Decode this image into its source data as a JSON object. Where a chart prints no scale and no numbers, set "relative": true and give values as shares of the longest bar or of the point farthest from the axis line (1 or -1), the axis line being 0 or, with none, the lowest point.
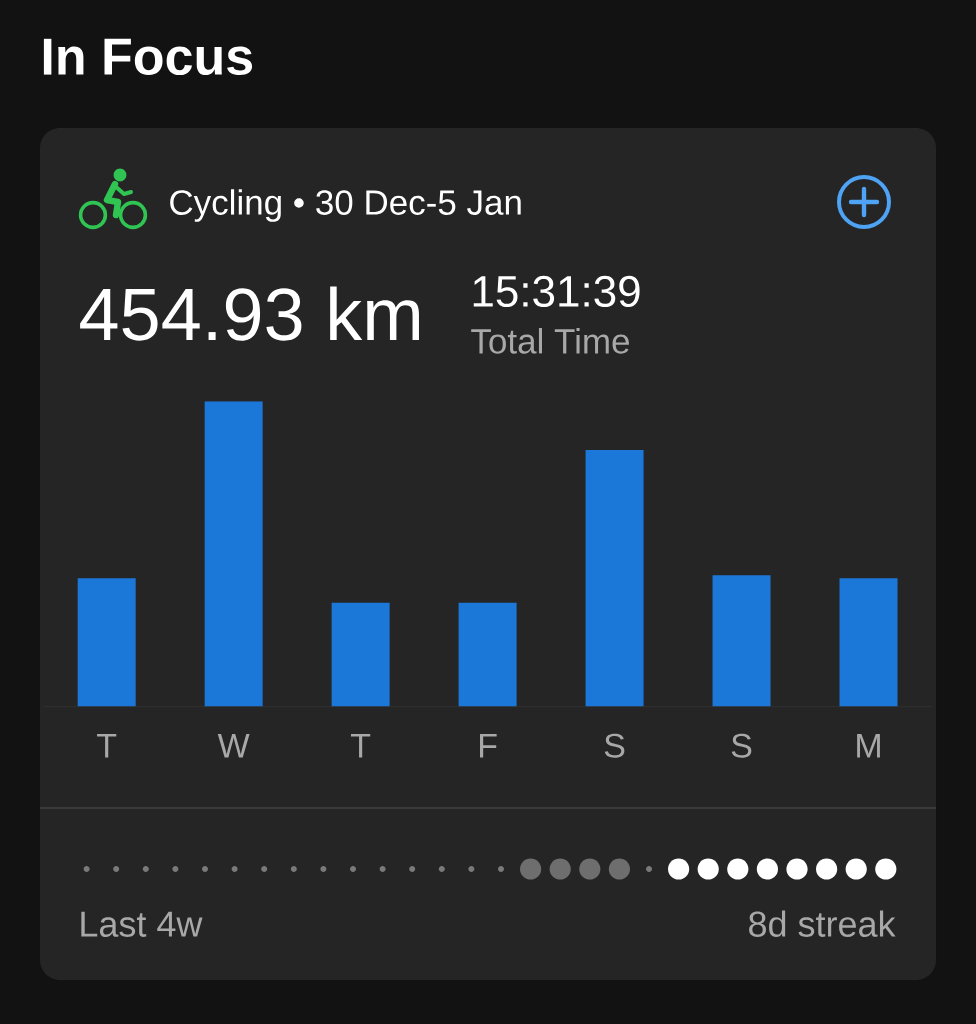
{
  "chart_data": {
    "type": "bar",
    "title": "In Focus",
    "subtitle": "Cycling • 30 Dec-5 Jan",
    "categories": [
      "T",
      "W",
      "T",
      "F",
      "S",
      "S",
      "M"
    ],
    "values": [
      0.42,
      1,
      0.34,
      0.34,
      0.84,
      0.43,
      0.42
    ],
    "relative": true,
    "color": "#1c78d8",
    "annotations": [
      "454.93 km",
      "15:31:39",
      "Total Time",
      "Last 4w",
      "8d streak"
    ]
  }
}
